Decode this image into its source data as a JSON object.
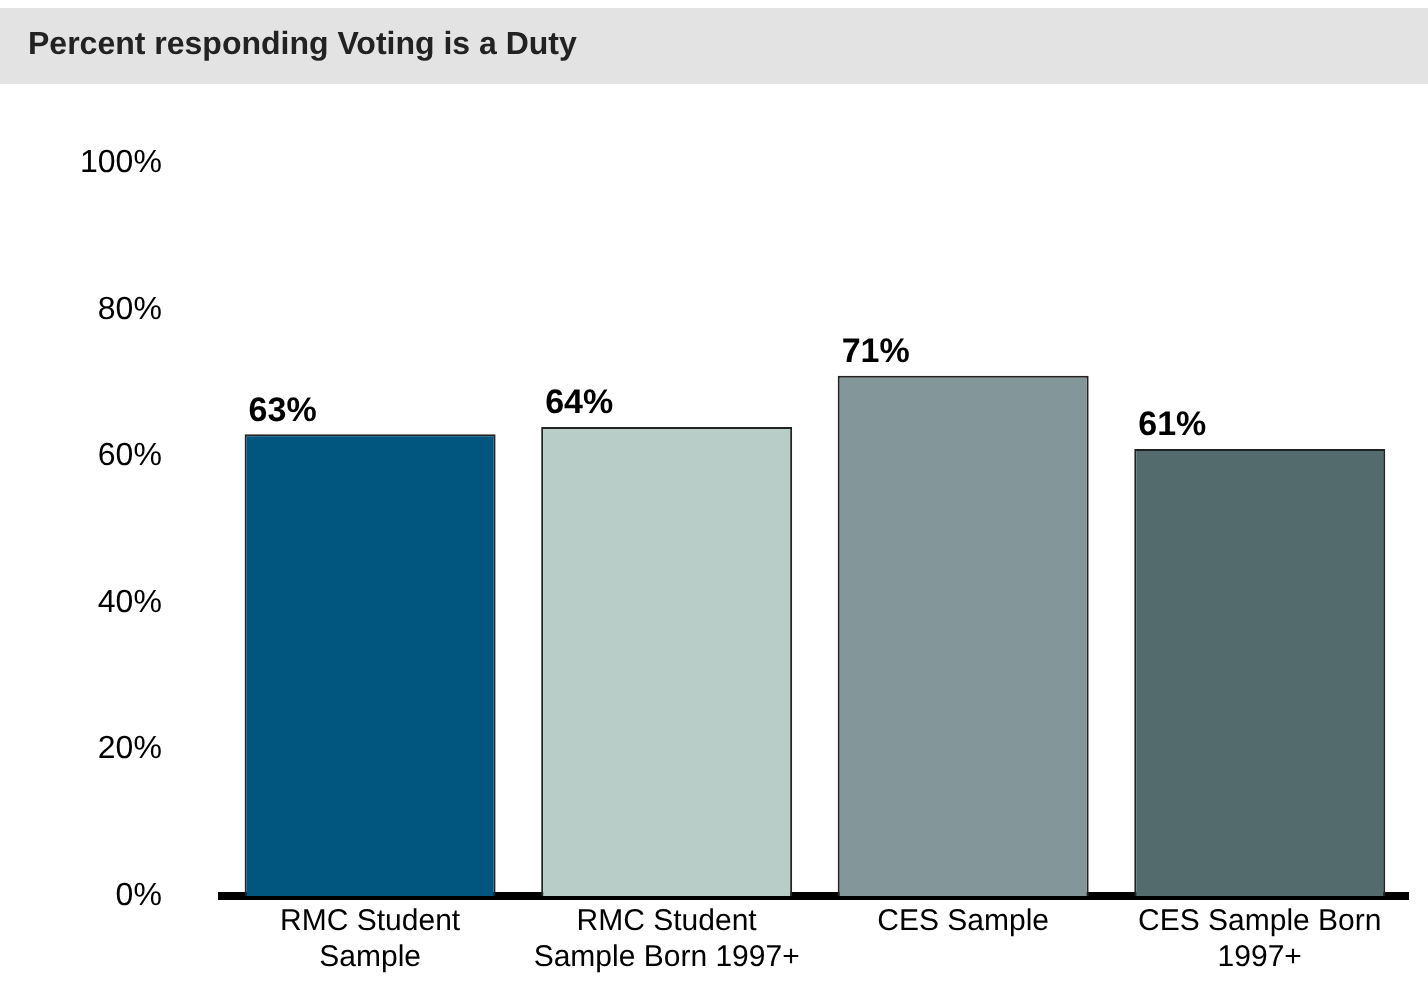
{
  "chart_data": {
    "type": "bar",
    "title": "Percent responding Voting is a Duty",
    "categories": [
      "RMC Student Sample",
      "RMC Student Sample Born 1997+",
      "CES Sample",
      "CES Sample Born 1997+"
    ],
    "values": [
      63,
      64,
      71,
      61
    ],
    "colors": [
      "#00567f",
      "#b9cdc8",
      "#83979a",
      "#546b6e"
    ],
    "value_labels": [
      "63%",
      "64%",
      "71%",
      "61%"
    ],
    "ylim": [
      0,
      100
    ],
    "yticks": [
      {
        "value": 0,
        "label": "0%"
      },
      {
        "value": 20,
        "label": "20%"
      },
      {
        "value": 40,
        "label": "40%"
      },
      {
        "value": 60,
        "label": "60%"
      },
      {
        "value": 80,
        "label": "80%"
      },
      {
        "value": 100,
        "label": "100%"
      }
    ],
    "grid": false,
    "legend": false
  }
}
